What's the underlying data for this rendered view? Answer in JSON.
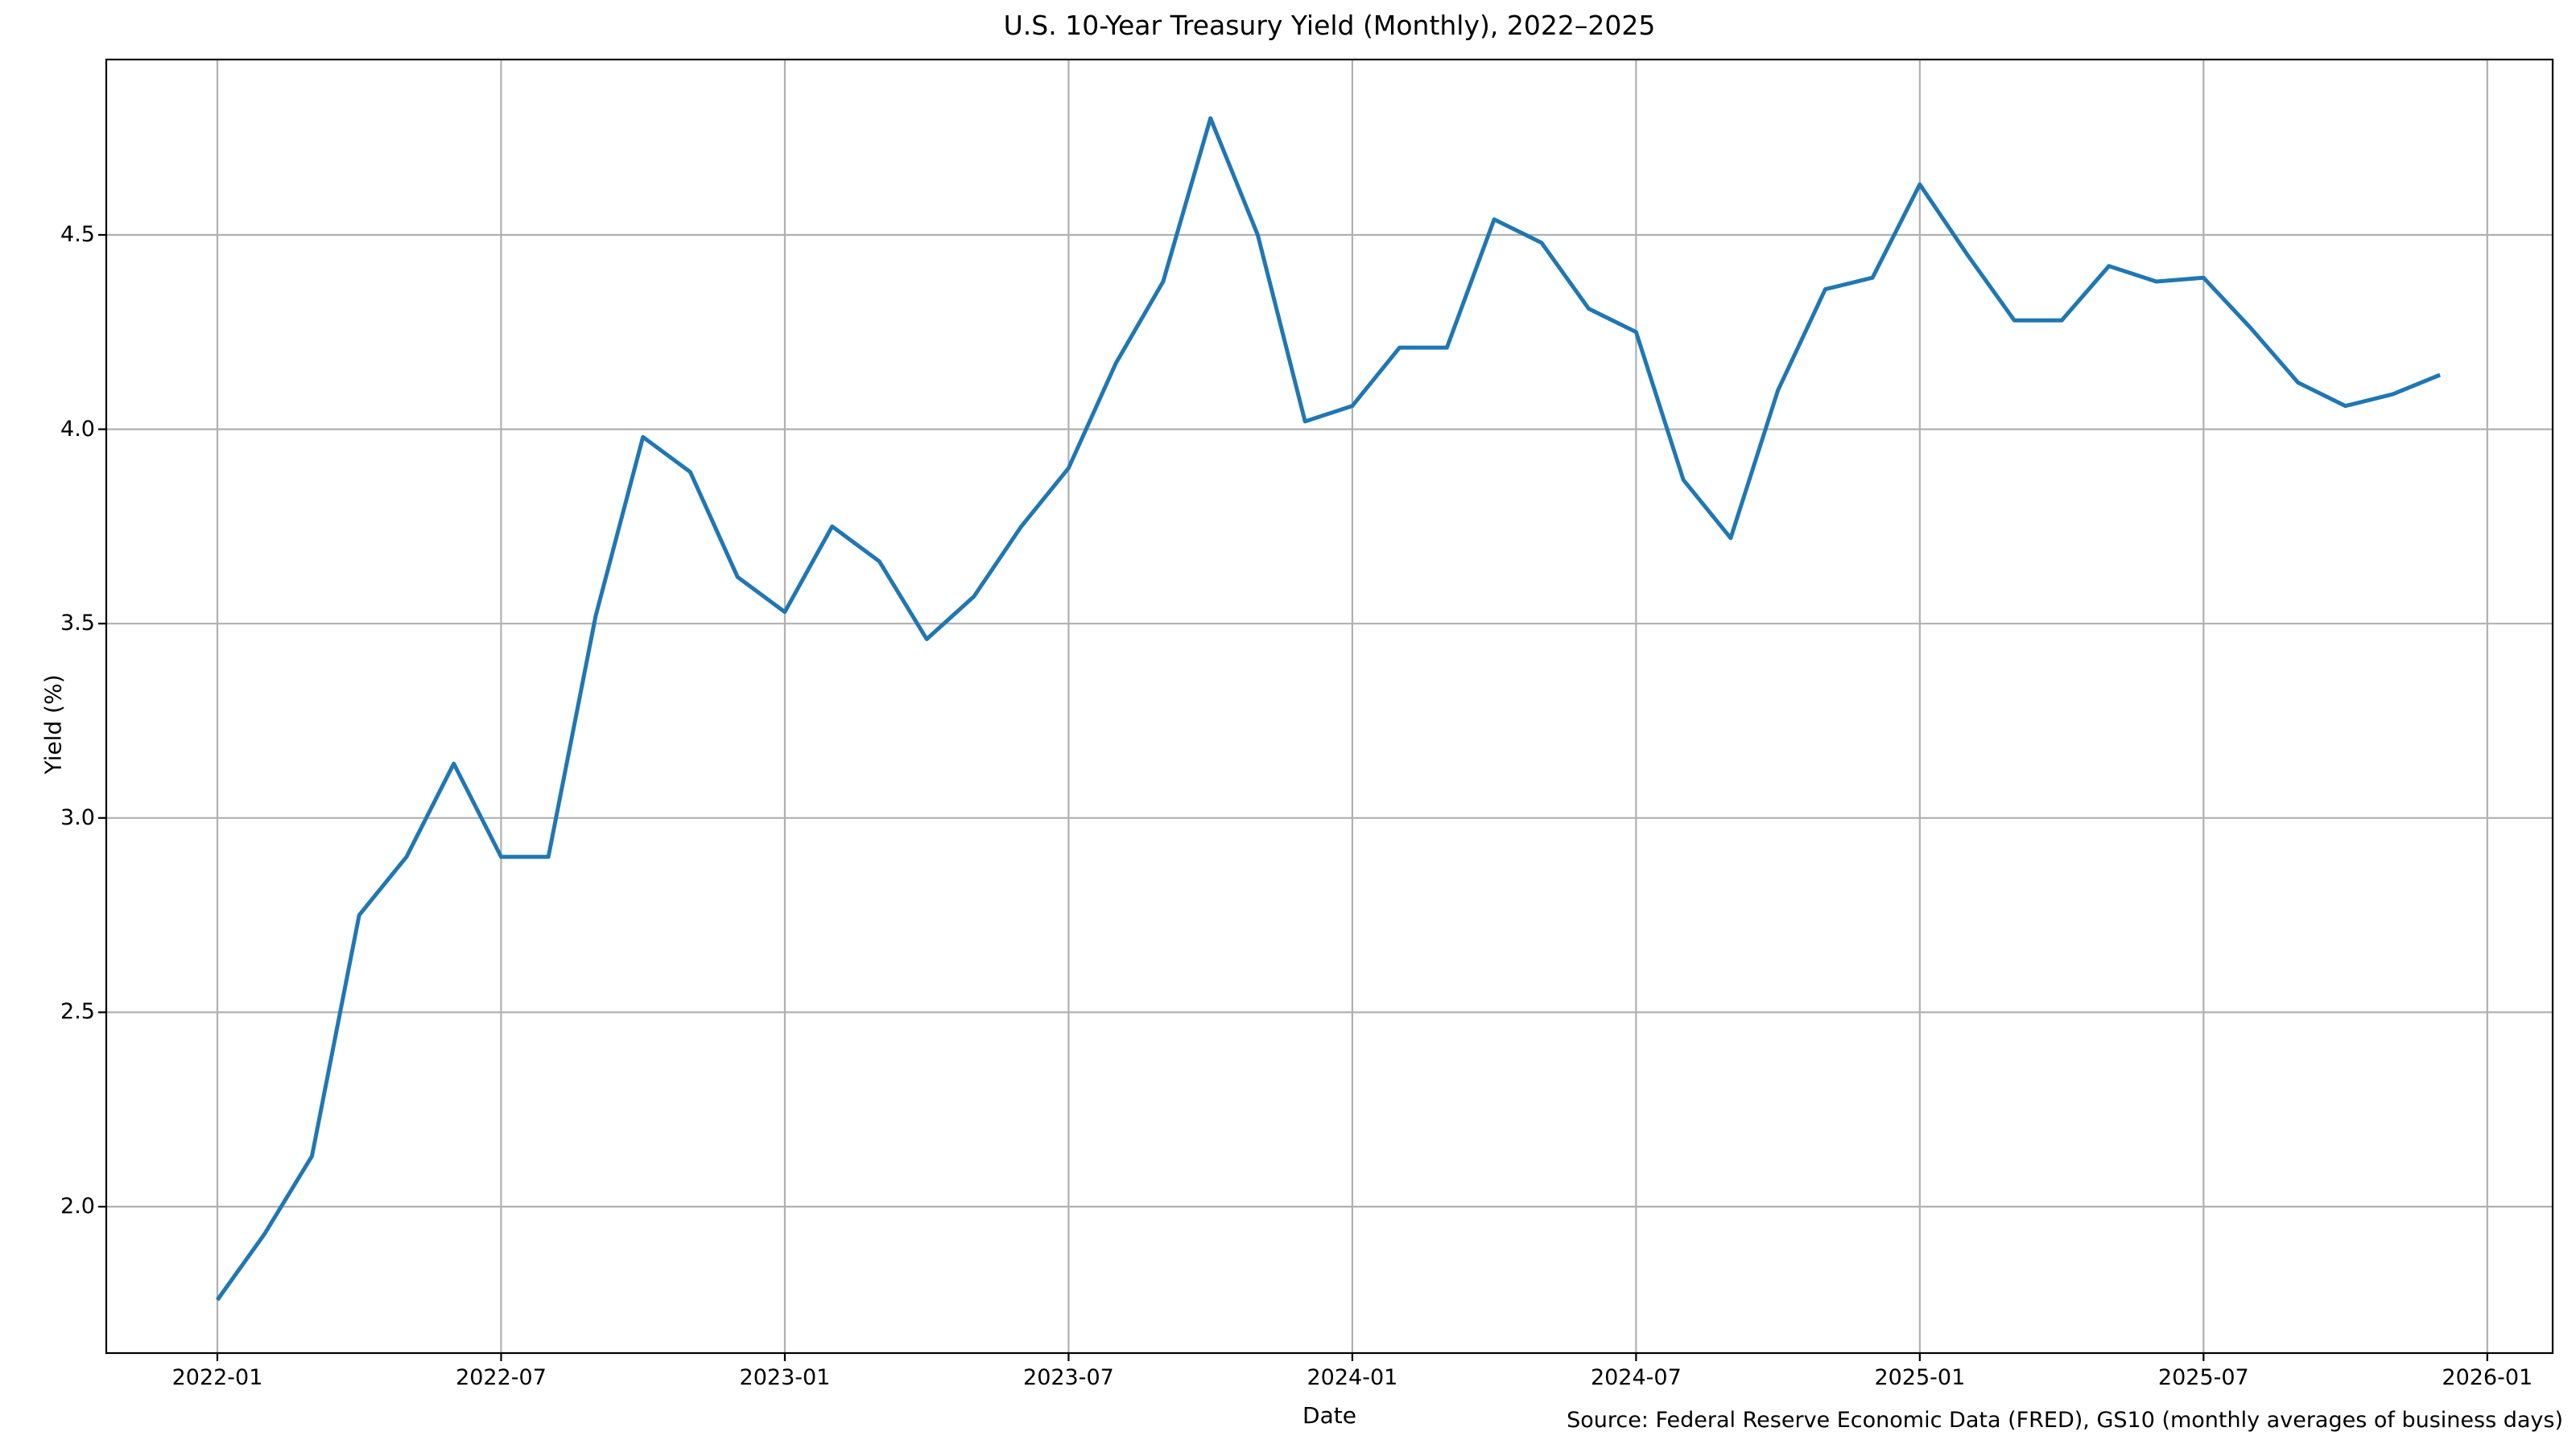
{
  "figure": {
    "title": "U.S. 10-Year Treasury Yield (Monthly), 2022–2025",
    "x_axis_label": "Date",
    "y_axis_label": "Yield (%)",
    "source_note": "Source: Federal Reserve Economic Data (FRED), GS10 (monthly averages of business days)"
  },
  "chart_data": {
    "type": "line",
    "title": "U.S. 10-Year Treasury Yield (Monthly), 2022–2025",
    "xlabel": "Date",
    "ylabel": "Yield (%)",
    "legend": null,
    "grid": true,
    "line_color": "#1f77b4",
    "grid_color": "#b0b0b0",
    "spine_color": "#000000",
    "background_color": "#ffffff",
    "x_tick_labels": [
      "2022-01",
      "2022-07",
      "2023-01",
      "2023-07",
      "2024-01",
      "2024-07",
      "2025-01",
      "2025-07",
      "2026-01"
    ],
    "x_tick_month_index": [
      0,
      6,
      12,
      18,
      24,
      30,
      36,
      42,
      48
    ],
    "y_tick_labels": [
      "2.0",
      "2.5",
      "3.0",
      "3.5",
      "4.0",
      "4.5"
    ],
    "ylim": [
      1.608,
      4.952
    ],
    "x": [
      "2022-01",
      "2022-02",
      "2022-03",
      "2022-04",
      "2022-05",
      "2022-06",
      "2022-07",
      "2022-08",
      "2022-09",
      "2022-10",
      "2022-11",
      "2022-12",
      "2023-01",
      "2023-02",
      "2023-03",
      "2023-04",
      "2023-05",
      "2023-06",
      "2023-07",
      "2023-08",
      "2023-09",
      "2023-10",
      "2023-11",
      "2023-12",
      "2024-01",
      "2024-02",
      "2024-03",
      "2024-04",
      "2024-05",
      "2024-06",
      "2024-07",
      "2024-08",
      "2024-09",
      "2024-10",
      "2024-11",
      "2024-12",
      "2025-01",
      "2025-02",
      "2025-03",
      "2025-04",
      "2025-05",
      "2025-06",
      "2025-07",
      "2025-08",
      "2025-09",
      "2025-10",
      "2025-11",
      "2025-12"
    ],
    "values": [
      1.76,
      1.93,
      2.13,
      2.75,
      2.9,
      3.14,
      2.9,
      2.9,
      3.52,
      3.98,
      3.89,
      3.62,
      3.53,
      3.75,
      3.66,
      3.46,
      3.57,
      3.75,
      3.9,
      4.17,
      4.38,
      4.8,
      4.5,
      4.02,
      4.06,
      4.21,
      4.21,
      4.54,
      4.48,
      4.31,
      4.25,
      3.87,
      3.72,
      4.1,
      4.36,
      4.39,
      4.63,
      4.45,
      4.28,
      4.28,
      4.42,
      4.38,
      4.39,
      4.26,
      4.12,
      4.06,
      4.09,
      4.14
    ]
  }
}
